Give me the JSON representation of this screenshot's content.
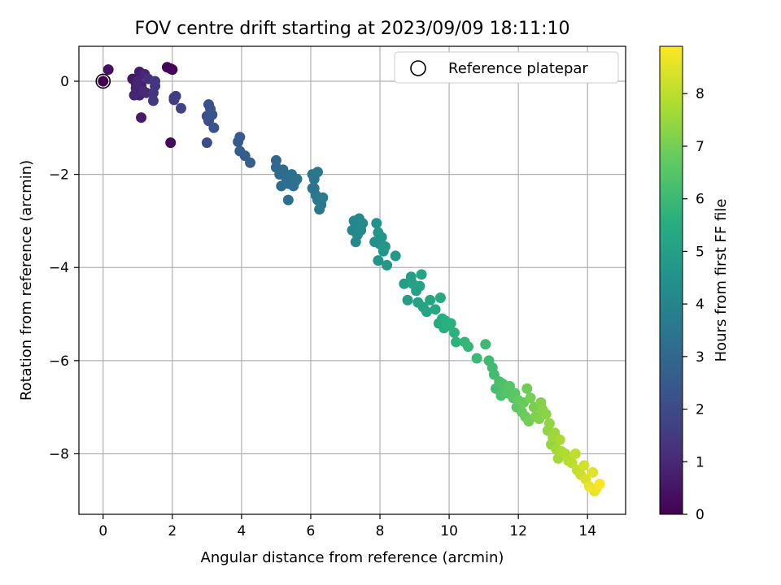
{
  "chart_data": {
    "type": "scatter",
    "title": "FOV centre drift starting at 2023/09/09 18:11:10",
    "xlabel": "Angular distance from reference (arcmin)",
    "ylabel": "Rotation from reference (arcmin)",
    "xlim": [
      -0.7,
      15.1
    ],
    "ylim": [
      -9.3,
      0.75
    ],
    "x_ticks": [
      0,
      2,
      4,
      6,
      8,
      10,
      12,
      14
    ],
    "y_ticks": [
      0,
      -2,
      -4,
      -6,
      -8
    ],
    "x_tick_labels": [
      "0",
      "2",
      "4",
      "6",
      "8",
      "10",
      "12",
      "14"
    ],
    "y_tick_labels": [
      "0",
      "−2",
      "−4",
      "−6",
      "−8"
    ],
    "grid": true,
    "legend": {
      "position": "top-right",
      "entries": [
        "Reference platepar"
      ]
    },
    "reference_point": {
      "x": 0,
      "y": 0
    },
    "colorbar": {
      "label": "Hours from first FF file",
      "colormap": "viridis",
      "range": [
        0,
        8.9
      ],
      "ticks": [
        0,
        1,
        2,
        3,
        4,
        5,
        6,
        7,
        8
      ],
      "tick_labels": [
        "0",
        "1",
        "2",
        "3",
        "4",
        "5",
        "6",
        "7",
        "8"
      ]
    },
    "series": [
      {
        "points": [
          [
            0.0,
            0.0,
            0.0
          ],
          [
            1.85,
            0.3,
            0.05
          ],
          [
            1.95,
            0.27,
            0.08
          ],
          [
            2.0,
            0.25,
            0.1
          ],
          [
            1.95,
            -1.32,
            0.2
          ],
          [
            0.15,
            0.25,
            0.4
          ],
          [
            0.85,
            0.05,
            0.55
          ],
          [
            0.95,
            -0.05,
            0.65
          ],
          [
            1.05,
            0.2,
            0.7
          ],
          [
            1.1,
            -0.1,
            0.75
          ],
          [
            1.05,
            -0.3,
            0.8
          ],
          [
            1.1,
            -0.78,
            0.6
          ],
          [
            0.95,
            -0.15,
            0.85
          ],
          [
            1.0,
            0.0,
            0.9
          ],
          [
            1.2,
            0.15,
            0.95
          ],
          [
            1.25,
            -0.25,
            1.05
          ],
          [
            1.3,
            0.05,
            1.1
          ],
          [
            1.15,
            -0.2,
            1.0
          ],
          [
            0.9,
            -0.3,
            0.9
          ],
          [
            1.45,
            -0.25,
            1.3
          ],
          [
            1.5,
            -0.1,
            1.35
          ],
          [
            1.5,
            0.0,
            1.4
          ],
          [
            1.45,
            -0.42,
            1.4
          ],
          [
            2.05,
            -0.4,
            1.6
          ],
          [
            2.05,
            -0.35,
            1.62
          ],
          [
            2.1,
            -0.32,
            1.65
          ],
          [
            2.25,
            -0.58,
            1.7
          ],
          [
            3.0,
            -1.32,
            2.0
          ],
          [
            3.0,
            -0.75,
            2.05
          ],
          [
            3.05,
            -0.85,
            2.1
          ],
          [
            3.1,
            -0.6,
            2.15
          ],
          [
            3.05,
            -0.5,
            2.2
          ],
          [
            3.15,
            -0.72,
            2.2
          ],
          [
            3.2,
            -1.0,
            2.25
          ],
          [
            3.1,
            -0.7,
            2.3
          ],
          [
            3.9,
            -1.3,
            2.5
          ],
          [
            3.95,
            -1.2,
            2.55
          ],
          [
            3.95,
            -1.5,
            2.6
          ],
          [
            4.1,
            -1.6,
            2.65
          ],
          [
            4.25,
            -1.75,
            2.7
          ],
          [
            5.0,
            -1.7,
            2.95
          ],
          [
            5.0,
            -1.85,
            3.0
          ],
          [
            5.1,
            -2.0,
            3.05
          ],
          [
            5.15,
            -2.25,
            3.1
          ],
          [
            5.2,
            -1.9,
            3.1
          ],
          [
            5.3,
            -2.1,
            3.15
          ],
          [
            5.35,
            -2.2,
            3.2
          ],
          [
            5.35,
            -2.55,
            3.2
          ],
          [
            5.45,
            -2.0,
            3.25
          ],
          [
            5.5,
            -2.25,
            3.3
          ],
          [
            5.55,
            -2.15,
            3.3
          ],
          [
            5.6,
            -2.1,
            3.35
          ],
          [
            6.05,
            -2.0,
            3.4
          ],
          [
            6.1,
            -2.3,
            3.45
          ],
          [
            6.15,
            -2.45,
            3.5
          ],
          [
            6.2,
            -2.55,
            3.55
          ],
          [
            6.25,
            -2.75,
            3.55
          ],
          [
            6.3,
            -2.65,
            3.6
          ],
          [
            6.35,
            -2.5,
            3.65
          ],
          [
            6.2,
            -1.95,
            3.5
          ],
          [
            6.1,
            -2.1,
            3.45
          ],
          [
            6.05,
            -2.3,
            3.42
          ],
          [
            7.2,
            -3.2,
            4.05
          ],
          [
            7.25,
            -3.0,
            4.1
          ],
          [
            7.3,
            -3.1,
            4.1
          ],
          [
            7.3,
            -3.45,
            4.15
          ],
          [
            7.35,
            -3.3,
            4.15
          ],
          [
            7.4,
            -2.95,
            4.2
          ],
          [
            7.45,
            -3.2,
            4.2
          ],
          [
            7.5,
            -3.05,
            4.25
          ],
          [
            7.9,
            -3.05,
            4.5
          ],
          [
            7.95,
            -3.25,
            4.55
          ],
          [
            7.95,
            -3.85,
            4.55
          ],
          [
            8.0,
            -3.5,
            4.6
          ],
          [
            8.05,
            -3.35,
            4.6
          ],
          [
            8.1,
            -3.65,
            4.65
          ],
          [
            8.15,
            -3.55,
            4.7
          ],
          [
            8.2,
            -3.95,
            4.7
          ],
          [
            8.45,
            -3.75,
            4.8
          ],
          [
            7.85,
            -3.45,
            4.5
          ],
          [
            8.7,
            -4.35,
            4.9
          ],
          [
            8.8,
            -4.7,
            4.95
          ],
          [
            8.9,
            -4.2,
            5.0
          ],
          [
            8.95,
            -4.35,
            5.05
          ],
          [
            9.05,
            -4.5,
            5.05
          ],
          [
            9.1,
            -4.75,
            5.1
          ],
          [
            9.15,
            -4.4,
            5.1
          ],
          [
            9.2,
            -4.15,
            5.15
          ],
          [
            9.25,
            -4.85,
            5.15
          ],
          [
            9.35,
            -4.95,
            5.2
          ],
          [
            9.45,
            -4.7,
            5.2
          ],
          [
            9.6,
            -4.9,
            5.3
          ],
          [
            9.75,
            -4.65,
            5.35
          ],
          [
            9.7,
            -5.2,
            5.4
          ],
          [
            9.8,
            -5.1,
            5.45
          ],
          [
            9.85,
            -5.3,
            5.5
          ],
          [
            9.9,
            -5.15,
            5.55
          ],
          [
            9.95,
            -5.25,
            5.6
          ],
          [
            10.05,
            -5.2,
            5.6
          ],
          [
            10.15,
            -5.4,
            5.65
          ],
          [
            10.2,
            -5.6,
            5.7
          ],
          [
            10.45,
            -5.6,
            5.8
          ],
          [
            10.55,
            -5.7,
            5.85
          ],
          [
            10.8,
            -5.95,
            5.95
          ],
          [
            11.05,
            -5.65,
            6.0
          ],
          [
            11.15,
            -6.0,
            6.05
          ],
          [
            11.25,
            -6.15,
            6.1
          ],
          [
            11.3,
            -6.3,
            6.15
          ],
          [
            11.35,
            -6.6,
            6.2
          ],
          [
            11.45,
            -6.45,
            6.25
          ],
          [
            11.5,
            -6.75,
            6.3
          ],
          [
            11.55,
            -6.5,
            6.35
          ],
          [
            11.6,
            -6.65,
            6.4
          ],
          [
            11.7,
            -6.7,
            6.45
          ],
          [
            11.75,
            -6.55,
            6.5
          ],
          [
            11.85,
            -6.8,
            6.55
          ],
          [
            11.9,
            -6.7,
            6.6
          ],
          [
            11.95,
            -7.0,
            6.65
          ],
          [
            12.0,
            -6.85,
            6.7
          ],
          [
            12.1,
            -7.1,
            6.75
          ],
          [
            12.15,
            -6.9,
            6.8
          ],
          [
            12.2,
            -7.2,
            6.85
          ],
          [
            12.25,
            -6.6,
            6.9
          ],
          [
            12.3,
            -7.3,
            6.95
          ],
          [
            12.35,
            -6.8,
            7.0
          ],
          [
            12.45,
            -7.0,
            7.05
          ],
          [
            12.5,
            -7.2,
            7.1
          ],
          [
            12.6,
            -7.25,
            7.15
          ],
          [
            12.65,
            -6.9,
            7.2
          ],
          [
            12.7,
            -7.05,
            7.25
          ],
          [
            12.8,
            -7.15,
            7.3
          ],
          [
            12.85,
            -7.5,
            7.35
          ],
          [
            12.9,
            -7.35,
            7.4
          ],
          [
            12.95,
            -7.8,
            7.45
          ],
          [
            13.0,
            -7.65,
            7.5
          ],
          [
            13.05,
            -7.55,
            7.55
          ],
          [
            13.1,
            -7.9,
            7.6
          ],
          [
            13.15,
            -8.1,
            7.65
          ],
          [
            13.2,
            -7.7,
            7.7
          ],
          [
            13.25,
            -7.95,
            7.75
          ],
          [
            13.35,
            -8.0,
            7.8
          ],
          [
            13.45,
            -8.15,
            7.9
          ],
          [
            13.55,
            -8.2,
            7.95
          ],
          [
            13.65,
            -8.0,
            8.05
          ],
          [
            13.7,
            -8.35,
            8.1
          ],
          [
            13.8,
            -8.45,
            8.2
          ],
          [
            13.9,
            -8.25,
            8.3
          ],
          [
            13.95,
            -8.55,
            8.4
          ],
          [
            14.15,
            -8.4,
            8.5
          ],
          [
            14.2,
            -8.8,
            8.6
          ],
          [
            14.25,
            -8.75,
            8.7
          ],
          [
            14.35,
            -8.65,
            8.8
          ],
          [
            14.05,
            -8.7,
            8.65
          ]
        ]
      }
    ]
  }
}
